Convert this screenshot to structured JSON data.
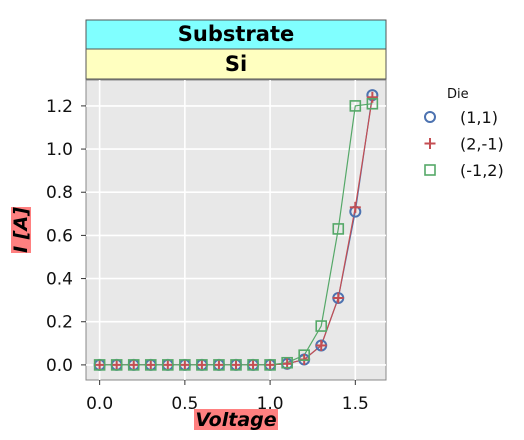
{
  "strips": {
    "top": {
      "label": "Substrate",
      "color": "#80ffff"
    },
    "bottom": {
      "label": "Si",
      "color": "#ffffc0"
    }
  },
  "colors": {
    "panel_bg": "#e8e8e8",
    "grid": "#ffffff",
    "label_highlight": "#ff8080"
  },
  "chart_data": {
    "type": "line",
    "xlabel": "Voltage",
    "ylabel": "I [A]",
    "xlim": [
      -0.08,
      1.68
    ],
    "ylim": [
      -0.07,
      1.32
    ],
    "xticks": [
      0.0,
      0.5,
      1.0,
      1.5
    ],
    "xtick_labels": [
      "0.0",
      "0.5",
      "1.0",
      "1.5"
    ],
    "yticks": [
      0.0,
      0.2,
      0.4,
      0.6,
      0.8,
      1.0,
      1.2
    ],
    "ytick_labels": [
      "0.0",
      "0.2",
      "0.4",
      "0.6",
      "0.8",
      "1.0",
      "1.2"
    ],
    "grid": true,
    "legend_title": "Die",
    "legend_position": "right",
    "series": [
      {
        "name": "(1,1)",
        "marker": "circle",
        "color": "#4c72b0",
        "x": [
          0.0,
          0.1,
          0.2,
          0.3,
          0.4,
          0.5,
          0.6,
          0.7,
          0.8,
          0.9,
          1.0,
          1.1,
          1.2,
          1.3,
          1.4,
          1.5,
          1.6
        ],
        "y": [
          0,
          0,
          0,
          0,
          0,
          0,
          0,
          0,
          0,
          0,
          0.0,
          0.005,
          0.025,
          0.09,
          0.31,
          0.71,
          1.25
        ]
      },
      {
        "name": "(2,-1)",
        "marker": "plus",
        "color": "#c44e52",
        "x": [
          0.0,
          0.1,
          0.2,
          0.3,
          0.4,
          0.5,
          0.6,
          0.7,
          0.8,
          0.9,
          1.0,
          1.1,
          1.2,
          1.3,
          1.4,
          1.5,
          1.6
        ],
        "y": [
          0,
          0,
          0,
          0,
          0,
          0,
          0,
          0,
          0,
          0,
          0.0,
          0.005,
          0.025,
          0.09,
          0.31,
          0.73,
          1.24
        ]
      },
      {
        "name": "(-1,2)",
        "marker": "square",
        "color": "#55a868",
        "x": [
          0.0,
          0.1,
          0.2,
          0.3,
          0.4,
          0.5,
          0.6,
          0.7,
          0.8,
          0.9,
          1.0,
          1.1,
          1.2,
          1.3,
          1.4,
          1.5,
          1.6
        ],
        "y": [
          0,
          0,
          0,
          0,
          0,
          0,
          0,
          0,
          0,
          0,
          0.0,
          0.01,
          0.045,
          0.18,
          0.63,
          1.2,
          1.21
        ]
      }
    ]
  }
}
